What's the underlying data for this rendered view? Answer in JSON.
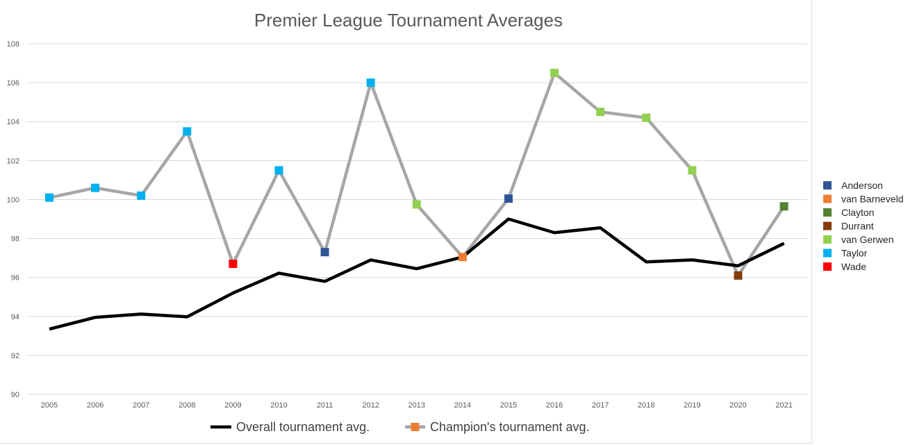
{
  "chart_data": {
    "type": "line",
    "title": "Premier League Tournament Averages",
    "xlabel": "",
    "ylabel": "",
    "ylim": [
      90,
      108
    ],
    "y_ticks": [
      90,
      92,
      94,
      96,
      98,
      100,
      102,
      104,
      106,
      108
    ],
    "categories": [
      "2005",
      "2006",
      "2007",
      "2008",
      "2009",
      "2010",
      "2011",
      "2012",
      "2013",
      "2014",
      "2015",
      "2016",
      "2017",
      "2018",
      "2019",
      "2020",
      "2021"
    ],
    "grid": true,
    "legend_position": "right",
    "series": [
      {
        "name": "Overall tournament avg.",
        "color": "#000000",
        "values": [
          93.35,
          93.95,
          94.12,
          93.98,
          95.2,
          96.22,
          95.8,
          96.9,
          96.45,
          97.05,
          99.0,
          98.3,
          98.55,
          96.8,
          96.9,
          96.6,
          97.75
        ]
      },
      {
        "name": "Champion's tournament avg.",
        "color": "#a6a6a6",
        "marker_color": "#ed7d31",
        "values": [
          100.1,
          100.6,
          100.2,
          103.5,
          96.7,
          101.5,
          97.3,
          106.0,
          99.75,
          97.05,
          100.05,
          106.5,
          104.5,
          104.2,
          101.5,
          96.1,
          99.65
        ],
        "champions": [
          "Taylor",
          "Taylor",
          "Taylor",
          "Taylor",
          "Wade",
          "Taylor",
          "Anderson",
          "Taylor",
          "van Gerwen",
          "van Barneveld",
          "Anderson",
          "van Gerwen",
          "van Gerwen",
          "van Gerwen",
          "van Gerwen",
          "Durrant",
          "Clayton"
        ]
      }
    ],
    "champion_legend": [
      {
        "name": "Anderson",
        "color": "#2f5597"
      },
      {
        "name": "van Barneveld",
        "color": "#ed7d31"
      },
      {
        "name": "Clayton",
        "color": "#548235"
      },
      {
        "name": "Durrant",
        "color": "#843c0c"
      },
      {
        "name": "van Gerwen",
        "color": "#92d050"
      },
      {
        "name": "Taylor",
        "color": "#00b0f0"
      },
      {
        "name": "Wade",
        "color": "#ff0000"
      }
    ]
  }
}
